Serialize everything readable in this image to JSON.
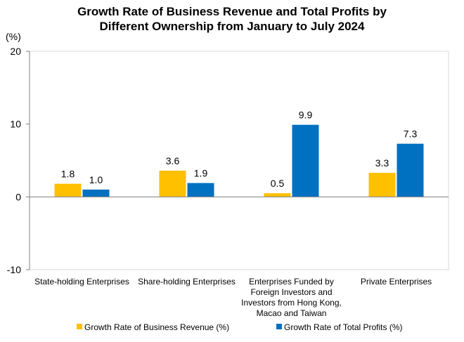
{
  "chart_data": {
    "type": "bar",
    "title_line1": "Growth Rate of Business Revenue and Total Profits by",
    "title_line2": "Different Ownership from January to July 2024",
    "ylabel": "(%)",
    "ylim": [
      -10,
      20
    ],
    "yticks": [
      -10,
      0,
      10,
      20
    ],
    "grid": false,
    "legend_position": "bottom",
    "categories": [
      [
        "State-holding Enterprises"
      ],
      [
        "Share-holding Enterprises"
      ],
      [
        "Enterprises Funded by",
        "Foreign Investors and",
        "Investors from Hong Kong,",
        "Macao and Taiwan"
      ],
      [
        "Private Enterprises"
      ]
    ],
    "series": [
      {
        "name": "Growth Rate of Business Revenue (%)",
        "color": "#FFC000",
        "values": [
          1.8,
          3.6,
          0.5,
          3.3
        ]
      },
      {
        "name": "Growth Rate of Total Profits (%)",
        "color": "#0070C0",
        "values": [
          1.0,
          1.9,
          9.9,
          7.3
        ]
      }
    ]
  }
}
